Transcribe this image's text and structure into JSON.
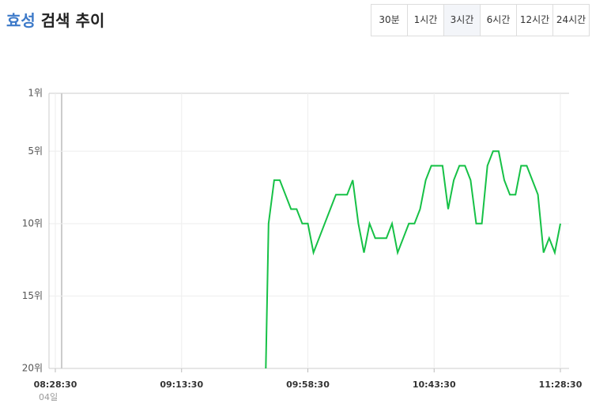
{
  "title_keyword": "효성",
  "title_suffix": "검색 추이",
  "range_buttons": [
    "30분",
    "1시간",
    "3시간",
    "6시간",
    "12시간",
    "24시간"
  ],
  "selected_button": 2,
  "chart_data": {
    "type": "line",
    "x_date_label": "04일",
    "x": [
      "09:43:30",
      "09:44:30",
      "09:46:30",
      "09:48:30",
      "09:50:30",
      "09:52:30",
      "09:54:30",
      "09:56:30",
      "09:58:30",
      "10:00:30",
      "10:02:30",
      "10:04:30",
      "10:06:30",
      "10:08:30",
      "10:10:30",
      "10:12:30",
      "10:14:30",
      "10:16:30",
      "10:18:30",
      "10:20:30",
      "10:22:30",
      "10:24:30",
      "10:26:30",
      "10:28:30",
      "10:30:30",
      "10:32:30",
      "10:34:30",
      "10:36:30",
      "10:38:30",
      "10:40:30",
      "10:42:30",
      "10:44:30",
      "10:46:30",
      "10:48:30",
      "10:50:30",
      "10:52:30",
      "10:54:30",
      "10:56:30",
      "10:58:30",
      "11:00:30",
      "11:02:30",
      "11:04:30",
      "11:06:30",
      "11:08:30",
      "11:10:30",
      "11:12:30",
      "11:14:30",
      "11:16:30",
      "11:18:30",
      "11:20:30",
      "11:22:30",
      "11:24:30",
      "11:26:30",
      "11:28:30"
    ],
    "series": [
      {
        "color": "#16c146",
        "values": [
          20,
          10,
          7,
          7,
          8,
          9,
          9,
          10,
          10,
          12,
          11,
          10,
          9,
          8,
          8,
          8,
          7,
          10,
          12,
          10,
          11,
          11,
          11,
          10,
          12,
          11,
          10,
          10,
          9,
          7,
          6,
          6,
          6,
          9,
          7,
          6,
          6,
          7,
          10,
          10,
          6,
          5,
          5,
          7,
          8,
          8,
          6,
          6,
          7,
          8,
          12,
          11,
          12,
          10
        ]
      }
    ],
    "xlim": [
      "08:28:30",
      "11:28:30"
    ],
    "xticks": [
      "08:28:30",
      "09:13:30",
      "09:58:30",
      "10:43:30",
      "11:28:30"
    ],
    "ylim": [
      1,
      20
    ],
    "y_inverted": true,
    "yticks": [
      {
        "value": 1,
        "label": "1위"
      },
      {
        "value": 5,
        "label": "5위"
      },
      {
        "value": 10,
        "label": "10위"
      },
      {
        "value": 15,
        "label": "15위"
      },
      {
        "value": 20,
        "label": "20위"
      }
    ],
    "grid": true
  }
}
